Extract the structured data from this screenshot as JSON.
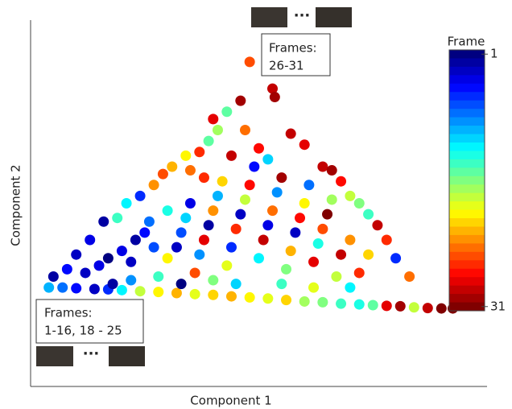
{
  "chart_data": {
    "type": "scatter",
    "xlabel": "Component 1",
    "ylabel": "Component 2",
    "xlim": [
      0,
      100
    ],
    "ylim": [
      0,
      100
    ],
    "points": {
      "x": [
        4,
        7,
        10,
        14,
        17,
        20,
        24,
        28,
        32,
        36,
        40,
        44,
        48,
        52,
        56,
        60,
        64,
        68,
        72,
        75,
        78,
        81,
        84,
        87,
        90,
        92.5,
        5,
        8,
        10,
        13,
        16,
        19,
        21,
        24,
        27,
        29,
        31,
        34,
        37,
        39,
        41,
        40,
        43,
        46,
        48,
        53,
        53.5,
        57,
        60,
        64,
        66,
        68,
        70,
        72,
        74,
        76,
        78,
        80,
        83,
        12,
        15,
        17,
        20,
        22,
        23,
        25,
        26,
        28,
        30,
        32,
        33,
        34,
        35,
        36,
        37,
        38,
        39,
        40,
        41,
        42,
        43,
        44,
        45,
        46,
        47,
        48,
        49,
        50,
        51,
        52,
        53,
        54,
        55,
        56,
        57,
        58,
        59,
        60,
        61,
        62,
        63,
        64,
        65,
        66,
        67,
        68,
        70,
        72,
        74,
        38,
        35,
        44,
        50,
        47,
        52,
        30,
        27,
        18,
        22,
        45,
        55,
        62,
        70,
        33,
        40
      ],
      "y": [
        27,
        27,
        26.8,
        26.6,
        26.5,
        26.3,
        26,
        25.8,
        25.5,
        25.2,
        25,
        24.6,
        24.3,
        24,
        23.6,
        23.2,
        23,
        22.6,
        22.4,
        22.2,
        22,
        21.9,
        21.6,
        21.4,
        21.3,
        21.3,
        30,
        32,
        36,
        40,
        45,
        46,
        50,
        52,
        55,
        58,
        60,
        63,
        64,
        67,
        70,
        73,
        75,
        78,
        88.6,
        81.3,
        79,
        69,
        66,
        60,
        59,
        56,
        52,
        50,
        47,
        44,
        40,
        35,
        30,
        31,
        33,
        35,
        37,
        34,
        40,
        42,
        45,
        30,
        35,
        38,
        42,
        46,
        50,
        31,
        36,
        40,
        44,
        48,
        52,
        56,
        33,
        38,
        43,
        47,
        51,
        55,
        60,
        35,
        40,
        44,
        48,
        53,
        57,
        32,
        37,
        42,
        46,
        50,
        55,
        34,
        39,
        43,
        47,
        51,
        30,
        36,
        40,
        31,
        36,
        57,
        59,
        63,
        65,
        70,
        62,
        48,
        38,
        28,
        29,
        28,
        28,
        27,
        27,
        28,
        29
      ],
      "frame": [
        10,
        8,
        5,
        3,
        6,
        12,
        18,
        20,
        22,
        19,
        21,
        22,
        20,
        19,
        21,
        17,
        16,
        14,
        13,
        15,
        28,
        30,
        18,
        29,
        31,
        31,
        2,
        5,
        3,
        4,
        2,
        14,
        12,
        6,
        23,
        25,
        22,
        20,
        26,
        15,
        17,
        28,
        15,
        30,
        25,
        29,
        30,
        29,
        28,
        29,
        30,
        27,
        18,
        16,
        14,
        29,
        26,
        6,
        24,
        3,
        4,
        1,
        4,
        3,
        2,
        5,
        8,
        14,
        20,
        3,
        7,
        11,
        4,
        25,
        9,
        28,
        2,
        23,
        10,
        21,
        19,
        6,
        26,
        3,
        18,
        27,
        5,
        12,
        29,
        4,
        24,
        9,
        30,
        16,
        22,
        3,
        27,
        20,
        8,
        28,
        13,
        25,
        31,
        17,
        18,
        29,
        23,
        26,
        21,
        26,
        24,
        29,
        27,
        24,
        11,
        13,
        7,
        2,
        9,
        11,
        14,
        19,
        12,
        1,
        16
      ]
    },
    "colorbar": {
      "label": "Frame",
      "colormap": "jet",
      "clim": [
        1,
        31
      ],
      "ticks": [
        1,
        31
      ]
    },
    "annotations": [
      {
        "lines": [
          "Frames:",
          "26-31"
        ],
        "ellipsis": "···"
      },
      {
        "lines": [
          "Frames:",
          "1-16, 18 - 25"
        ],
        "ellipsis": "···"
      }
    ]
  }
}
